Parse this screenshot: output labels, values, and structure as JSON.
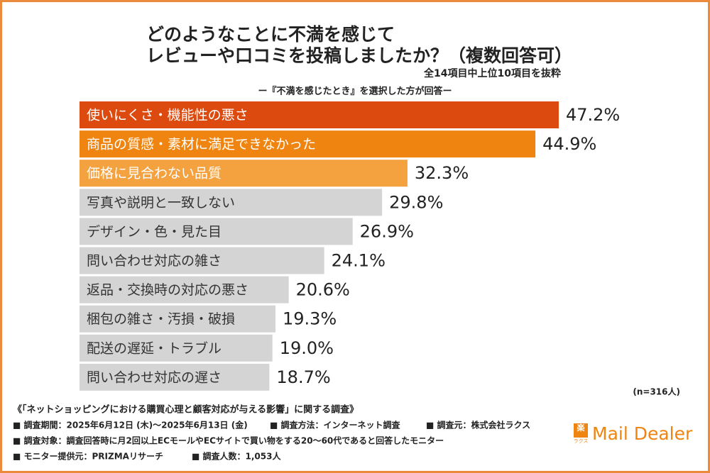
{
  "chart_data": {
    "type": "bar",
    "orientation": "horizontal",
    "title": [
      "どのようなことに不満を感じて",
      "レビューや口コミを投稿しましたか？（複数回答可）"
    ],
    "subtitle": "全14項目中上位10項目を抜粋",
    "note": "ー『不満を感じたとき』を選択した方が回答ー",
    "categories": [
      "使いにくさ・機能性の悪さ",
      "商品の質感・素材に満足できなかった",
      "価格に見合わない品質",
      "写真や説明と一致しない",
      "デザイン・色・見た目",
      "問い合わせ対応の雑さ",
      "返品・交換時の対応の悪さ",
      "梱包の雑さ・汚損・破損",
      "配送の遅延・トラブル",
      "問い合わせ対応の遅さ"
    ],
    "values": [
      47.2,
      44.9,
      32.3,
      29.8,
      26.9,
      24.1,
      20.6,
      19.3,
      19.0,
      18.7
    ],
    "value_labels": [
      "47.2%",
      "44.9%",
      "32.3%",
      "29.8%",
      "26.9%",
      "24.1%",
      "20.6%",
      "19.3%",
      "19.0%",
      "18.7%"
    ],
    "colors": [
      "#dd4a10",
      "#ef8510",
      "#f4a13f",
      "#d4d4d4",
      "#d4d4d4",
      "#d4d4d4",
      "#d4d4d4",
      "#d4d4d4",
      "#d4d4d4",
      "#d4d4d4"
    ],
    "sample_size": "(n=316人)"
  },
  "footer": {
    "survey_name": "《「ネットショッピングにおける購買心理と顧客対応が与える影響」に関する調査》",
    "lines": [
      [
        "■ 調査期間：2025年6月12日 (木)〜2025年6月13日 (金)",
        "■ 調査方法：インターネット調査",
        "■ 調査元：株式会社ラクス"
      ],
      [
        "■ 調査対象：調査回答時に月2回以上ECモールやECサイトで買い物をする20〜60代であると回答したモニター"
      ],
      [
        "■ モニター提供元：PRIZMAリサーチ",
        "■ 調査人数：1,053人"
      ]
    ]
  },
  "logo": {
    "icon": "楽",
    "icon_caption": "ラクス",
    "name": "Mail Dealer"
  }
}
